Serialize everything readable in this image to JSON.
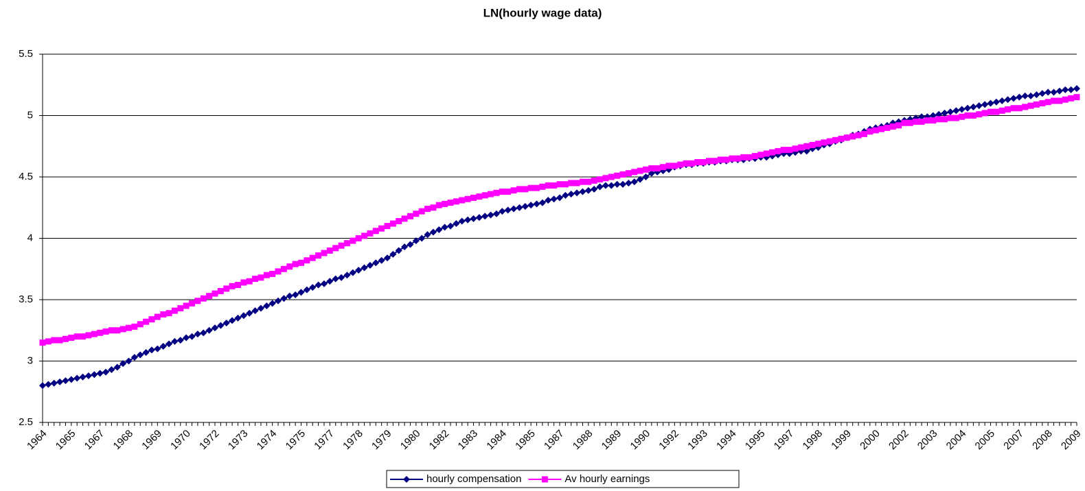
{
  "chart_data": {
    "type": "line",
    "title": "LN(hourly wage data)",
    "categories": [
      "1964",
      null,
      null,
      null,
      null,
      "1965",
      null,
      null,
      null,
      null,
      "1967",
      null,
      null,
      null,
      null,
      "1968",
      null,
      null,
      null,
      null,
      "1969",
      null,
      null,
      null,
      null,
      "1970",
      null,
      null,
      null,
      null,
      "1972",
      null,
      null,
      null,
      null,
      "1973",
      null,
      null,
      null,
      null,
      "1974",
      null,
      null,
      null,
      null,
      "1975",
      null,
      null,
      null,
      null,
      "1977",
      null,
      null,
      null,
      null,
      "1978",
      null,
      null,
      null,
      null,
      "1979",
      null,
      null,
      null,
      null,
      "1980",
      null,
      null,
      null,
      null,
      "1982",
      null,
      null,
      null,
      null,
      "1983",
      null,
      null,
      null,
      null,
      "1984",
      null,
      null,
      null,
      null,
      "1985",
      null,
      null,
      null,
      null,
      "1987",
      null,
      null,
      null,
      null,
      "1988",
      null,
      null,
      null,
      null,
      "1989",
      null,
      null,
      null,
      null,
      "1990",
      null,
      null,
      null,
      null,
      "1992",
      null,
      null,
      null,
      null,
      "1993",
      null,
      null,
      null,
      null,
      "1994",
      null,
      null,
      null,
      null,
      "1995",
      null,
      null,
      null,
      null,
      "1997",
      null,
      null,
      null,
      null,
      "1998",
      null,
      null,
      null,
      null,
      "1999",
      null,
      null,
      null,
      null,
      "2000",
      null,
      null,
      null,
      null,
      "2002",
      null,
      null,
      null,
      null,
      "2003",
      null,
      null,
      null,
      null,
      "2004",
      null,
      null,
      null,
      null,
      "2005",
      null,
      null,
      null,
      null,
      "2007",
      null,
      null,
      null,
      null,
      "2008",
      null,
      null,
      null,
      null,
      "2009"
    ],
    "series": [
      {
        "name": "hourly compensation",
        "color": "#000080",
        "marker": "diamond",
        "values": [
          2.8,
          2.81,
          2.82,
          2.83,
          2.84,
          2.85,
          2.86,
          2.87,
          2.88,
          2.89,
          2.9,
          2.91,
          2.93,
          2.95,
          2.98,
          3.0,
          3.03,
          3.05,
          3.07,
          3.09,
          3.1,
          3.12,
          3.14,
          3.16,
          3.17,
          3.19,
          3.2,
          3.22,
          3.23,
          3.25,
          3.27,
          3.29,
          3.31,
          3.33,
          3.35,
          3.37,
          3.39,
          3.41,
          3.43,
          3.45,
          3.47,
          3.49,
          3.51,
          3.53,
          3.54,
          3.56,
          3.58,
          3.6,
          3.62,
          3.63,
          3.65,
          3.67,
          3.68,
          3.7,
          3.72,
          3.74,
          3.76,
          3.78,
          3.8,
          3.82,
          3.84,
          3.87,
          3.9,
          3.93,
          3.95,
          3.98,
          4.0,
          4.03,
          4.05,
          4.07,
          4.09,
          4.1,
          4.12,
          4.14,
          4.15,
          4.16,
          4.17,
          4.18,
          4.19,
          4.2,
          4.22,
          4.23,
          4.24,
          4.25,
          4.26,
          4.27,
          4.28,
          4.29,
          4.31,
          4.32,
          4.33,
          4.35,
          4.36,
          4.37,
          4.38,
          4.39,
          4.4,
          4.42,
          4.43,
          4.43,
          4.44,
          4.44,
          4.45,
          4.46,
          4.48,
          4.5,
          4.53,
          4.54,
          4.55,
          4.56,
          4.58,
          4.59,
          4.6,
          4.6,
          4.61,
          4.61,
          4.62,
          4.62,
          4.63,
          4.63,
          4.64,
          4.64,
          4.64,
          4.65,
          4.65,
          4.66,
          4.66,
          4.67,
          4.68,
          4.69,
          4.69,
          4.7,
          4.71,
          4.71,
          4.73,
          4.74,
          4.76,
          4.77,
          4.79,
          4.8,
          4.82,
          4.84,
          4.85,
          4.87,
          4.89,
          4.9,
          4.91,
          4.92,
          4.94,
          4.95,
          4.96,
          4.97,
          4.98,
          4.99,
          4.99,
          5.0,
          5.01,
          5.02,
          5.03,
          5.04,
          5.05,
          5.06,
          5.07,
          5.08,
          5.09,
          5.1,
          5.11,
          5.12,
          5.13,
          5.14,
          5.15,
          5.16,
          5.16,
          5.17,
          5.18,
          5.19,
          5.19,
          5.2,
          5.21,
          5.21,
          5.22
        ]
      },
      {
        "name": "Av hourly earnings",
        "color": "#ff00ff",
        "marker": "square",
        "values": [
          3.15,
          3.16,
          3.17,
          3.17,
          3.18,
          3.19,
          3.2,
          3.2,
          3.21,
          3.22,
          3.23,
          3.24,
          3.25,
          3.25,
          3.26,
          3.27,
          3.28,
          3.3,
          3.32,
          3.34,
          3.36,
          3.38,
          3.39,
          3.41,
          3.43,
          3.45,
          3.47,
          3.49,
          3.51,
          3.53,
          3.55,
          3.57,
          3.59,
          3.61,
          3.62,
          3.64,
          3.65,
          3.67,
          3.68,
          3.7,
          3.71,
          3.73,
          3.75,
          3.77,
          3.79,
          3.8,
          3.82,
          3.84,
          3.86,
          3.88,
          3.9,
          3.92,
          3.94,
          3.96,
          3.98,
          4.0,
          4.02,
          4.04,
          4.06,
          4.08,
          4.1,
          4.12,
          4.14,
          4.16,
          4.18,
          4.2,
          4.22,
          4.24,
          4.25,
          4.27,
          4.28,
          4.29,
          4.3,
          4.31,
          4.32,
          4.33,
          4.34,
          4.35,
          4.36,
          4.37,
          4.38,
          4.38,
          4.39,
          4.4,
          4.4,
          4.41,
          4.41,
          4.42,
          4.43,
          4.43,
          4.44,
          4.44,
          4.45,
          4.45,
          4.46,
          4.46,
          4.47,
          4.48,
          4.49,
          4.5,
          4.51,
          4.52,
          4.53,
          4.54,
          4.55,
          4.56,
          4.57,
          4.57,
          4.58,
          4.59,
          4.59,
          4.6,
          4.61,
          4.61,
          4.62,
          4.62,
          4.63,
          4.63,
          4.64,
          4.64,
          4.65,
          4.65,
          4.66,
          4.66,
          4.67,
          4.68,
          4.69,
          4.7,
          4.71,
          4.72,
          4.72,
          4.73,
          4.74,
          4.75,
          4.76,
          4.77,
          4.78,
          4.79,
          4.8,
          4.81,
          4.82,
          4.83,
          4.84,
          4.85,
          4.87,
          4.88,
          4.89,
          4.9,
          4.91,
          4.92,
          4.94,
          4.94,
          4.95,
          4.95,
          4.96,
          4.96,
          4.97,
          4.97,
          4.98,
          4.98,
          4.99,
          5.0,
          5.0,
          5.01,
          5.02,
          5.03,
          5.03,
          5.04,
          5.05,
          5.06,
          5.06,
          5.07,
          5.08,
          5.09,
          5.1,
          5.11,
          5.12,
          5.12,
          5.13,
          5.14,
          5.15
        ]
      }
    ],
    "ylim": [
      2.5,
      5.5
    ],
    "yticks": [
      2.5,
      3,
      3.5,
      4,
      4.5,
      5,
      5.5
    ],
    "grid": true,
    "legend": "bottom"
  }
}
